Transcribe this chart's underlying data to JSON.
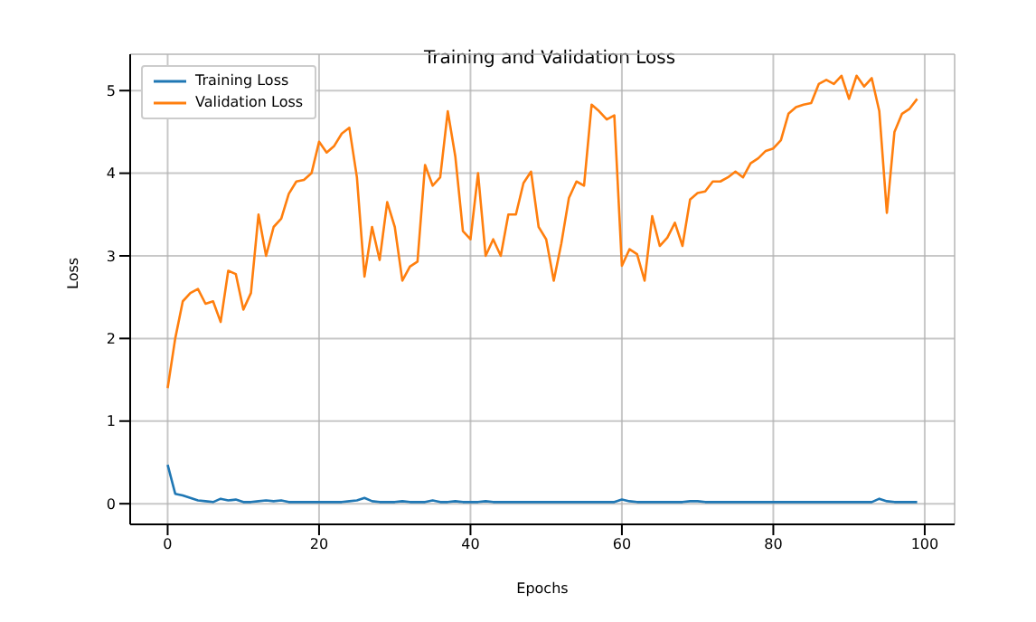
{
  "chart_data": {
    "type": "line",
    "title": "Training and Validation Loss",
    "xlabel": "Epochs",
    "ylabel": "Loss",
    "x": [
      0,
      1,
      2,
      3,
      4,
      5,
      6,
      7,
      8,
      9,
      10,
      11,
      12,
      13,
      14,
      15,
      16,
      17,
      18,
      19,
      20,
      21,
      22,
      23,
      24,
      25,
      26,
      27,
      28,
      29,
      30,
      31,
      32,
      33,
      34,
      35,
      36,
      37,
      38,
      39,
      40,
      41,
      42,
      43,
      44,
      45,
      46,
      47,
      48,
      49,
      50,
      51,
      52,
      53,
      54,
      55,
      56,
      57,
      58,
      59,
      60,
      61,
      62,
      63,
      64,
      65,
      66,
      67,
      68,
      69,
      70,
      71,
      72,
      73,
      74,
      75,
      76,
      77,
      78,
      79,
      80,
      81,
      82,
      83,
      84,
      85,
      86,
      87,
      88,
      89,
      90,
      91,
      92,
      93,
      94,
      95,
      96,
      97,
      98,
      99
    ],
    "series": [
      {
        "name": "Training Loss",
        "color": "#1f77b4",
        "values": [
          0.47,
          0.12,
          0.1,
          0.07,
          0.04,
          0.03,
          0.02,
          0.06,
          0.04,
          0.05,
          0.02,
          0.02,
          0.03,
          0.04,
          0.03,
          0.04,
          0.02,
          0.02,
          0.02,
          0.02,
          0.02,
          0.02,
          0.02,
          0.02,
          0.03,
          0.04,
          0.07,
          0.03,
          0.02,
          0.02,
          0.02,
          0.03,
          0.02,
          0.02,
          0.02,
          0.04,
          0.02,
          0.02,
          0.03,
          0.02,
          0.02,
          0.02,
          0.03,
          0.02,
          0.02,
          0.02,
          0.02,
          0.02,
          0.02,
          0.02,
          0.02,
          0.02,
          0.02,
          0.02,
          0.02,
          0.02,
          0.02,
          0.02,
          0.02,
          0.02,
          0.05,
          0.03,
          0.02,
          0.02,
          0.02,
          0.02,
          0.02,
          0.02,
          0.02,
          0.03,
          0.03,
          0.02,
          0.02,
          0.02,
          0.02,
          0.02,
          0.02,
          0.02,
          0.02,
          0.02,
          0.02,
          0.02,
          0.02,
          0.02,
          0.02,
          0.02,
          0.02,
          0.02,
          0.02,
          0.02,
          0.02,
          0.02,
          0.02,
          0.02,
          0.06,
          0.03,
          0.02,
          0.02,
          0.02,
          0.02
        ]
      },
      {
        "name": "Validation Loss",
        "color": "#ff7f0e",
        "values": [
          1.4,
          2.0,
          2.45,
          2.55,
          2.6,
          2.42,
          2.45,
          2.2,
          2.82,
          2.78,
          2.35,
          2.55,
          3.5,
          3.0,
          3.35,
          3.45,
          3.75,
          3.9,
          3.92,
          4.0,
          4.38,
          4.25,
          4.33,
          4.48,
          4.55,
          3.95,
          2.75,
          3.35,
          2.95,
          3.65,
          3.35,
          2.7,
          2.87,
          2.93,
          4.1,
          3.85,
          3.95,
          4.75,
          4.2,
          3.3,
          3.2,
          4.0,
          3.0,
          3.2,
          3.0,
          3.5,
          3.5,
          3.88,
          4.02,
          3.35,
          3.2,
          2.7,
          3.15,
          3.7,
          3.9,
          3.85,
          4.83,
          4.75,
          4.65,
          4.7,
          2.88,
          3.08,
          3.02,
          2.7,
          3.48,
          3.12,
          3.22,
          3.4,
          3.12,
          3.68,
          3.76,
          3.78,
          3.9,
          3.9,
          3.95,
          4.02,
          3.95,
          4.12,
          4.18,
          4.27,
          4.3,
          4.4,
          4.72,
          4.8,
          4.83,
          4.85,
          5.08,
          5.13,
          5.08,
          5.18,
          4.9,
          5.18,
          5.05,
          5.15,
          4.75,
          3.52,
          4.5,
          4.72,
          4.78,
          4.9
        ]
      }
    ],
    "xlim": [
      -4.95,
      103.95
    ],
    "xticks": [
      0,
      20,
      40,
      60,
      80,
      100
    ],
    "ylim": [
      -0.25,
      5.44
    ],
    "yticks": [
      0,
      1,
      2,
      3,
      4,
      5
    ],
    "grid": true,
    "legend": "top left",
    "marker": "none",
    "line_style": "solid"
  }
}
